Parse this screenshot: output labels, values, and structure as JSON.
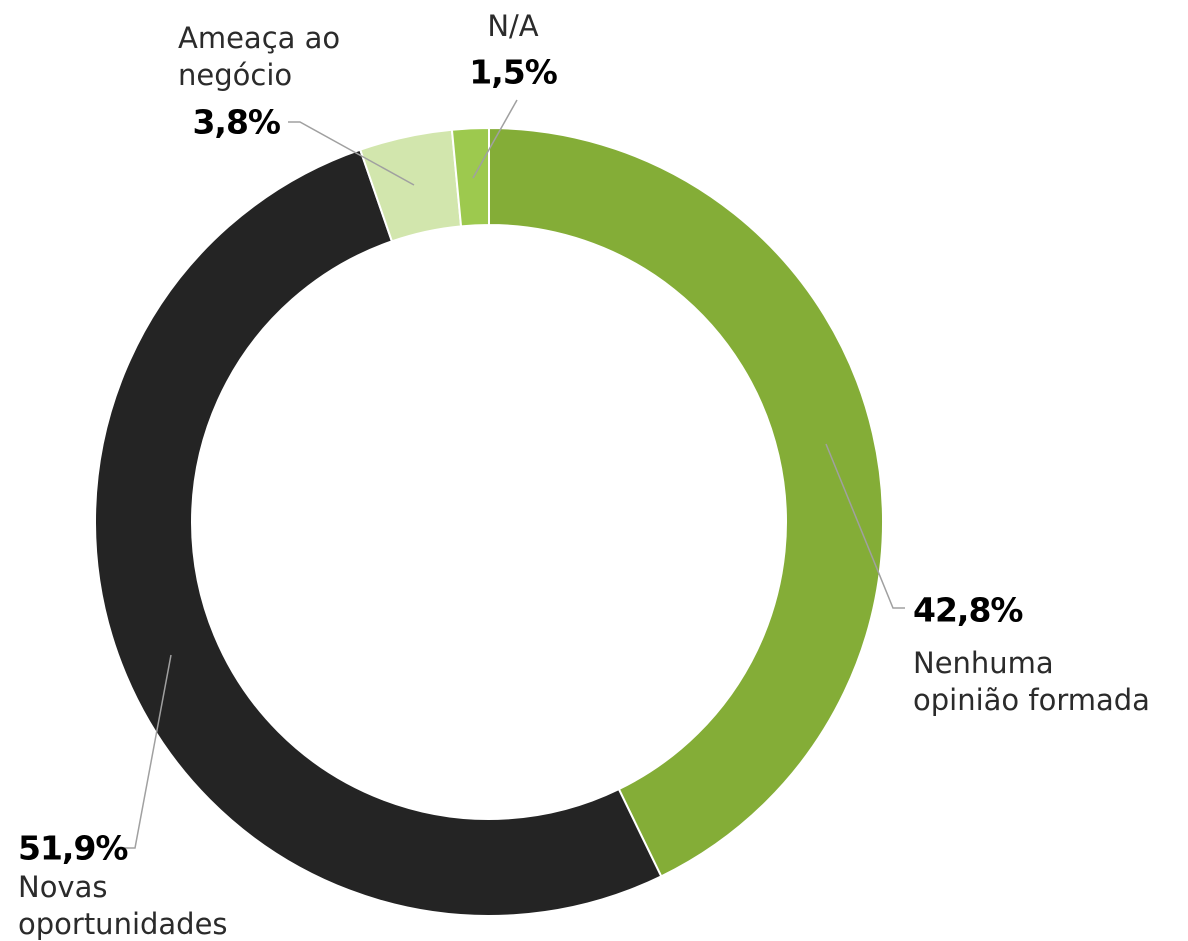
{
  "chart_data": {
    "type": "donut",
    "categories": [
      "Nenhuma\nopinião formada",
      "Novas\noportunidades",
      "Ameaça ao\nnegócio",
      "N/A"
    ],
    "values": [
      42.8,
      51.9,
      3.8,
      1.5
    ],
    "value_labels": [
      "42,8%",
      "51,9%",
      "3,8%",
      "1,5%"
    ],
    "colors": [
      "#84ad37",
      "#242424",
      "#d2e6ad",
      "#9dc94e"
    ]
  }
}
